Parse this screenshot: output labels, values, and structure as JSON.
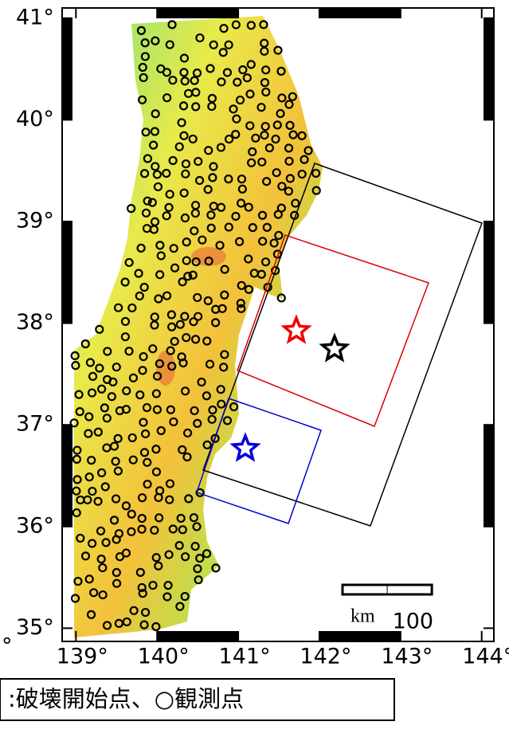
{
  "map": {
    "xlim": [
      138.83,
      144.15
    ],
    "ylim": [
      34.87,
      41.1
    ],
    "xticks": [
      {
        "value": 139,
        "label": "139°"
      },
      {
        "value": 140,
        "label": "140°"
      },
      {
        "value": 141,
        "label": "141°"
      },
      {
        "value": 142,
        "label": "142°"
      },
      {
        "value": 143,
        "label": "143°"
      },
      {
        "value": 144,
        "label": "144°"
      }
    ],
    "yticks": [
      {
        "value": 35,
        "label": "35°"
      },
      {
        "value": 36,
        "label": "36°"
      },
      {
        "value": 37,
        "label": "37°"
      },
      {
        "value": 38,
        "label": "38°"
      },
      {
        "value": 39,
        "label": "39°"
      },
      {
        "value": 40,
        "label": "40°"
      },
      {
        "value": 41,
        "label": "41°"
      }
    ],
    "cut_label": "°",
    "scale_bar": {
      "value": 100,
      "unit": "km"
    },
    "legend": ":破壊開始点、○観測点"
  }
}
